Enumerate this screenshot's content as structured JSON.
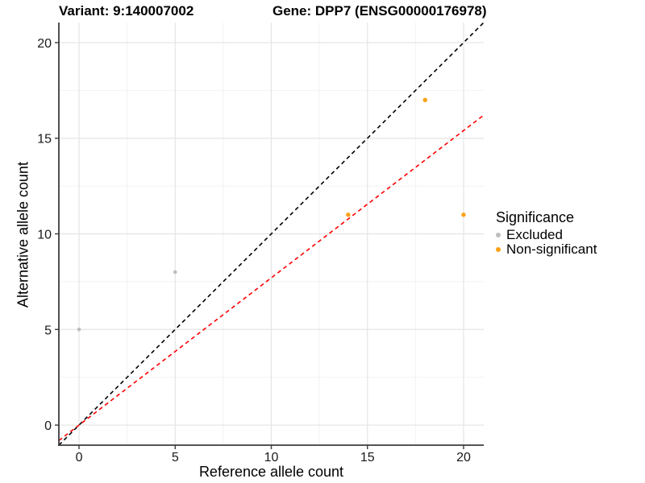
{
  "title": {
    "variant": "Variant: 9:140007002",
    "gene": "Gene: DPP7 (ENSG00000176978)"
  },
  "axes": {
    "x_label": "Reference allele count",
    "y_label": "Alternative allele count"
  },
  "legend": {
    "title": "Significance",
    "items": [
      {
        "label": "Excluded",
        "color": "#BDBDBD"
      },
      {
        "label": "Non-significant",
        "color": "#FCA014"
      }
    ]
  },
  "colors": {
    "background": "#FFFFFF",
    "grid_major": "#E4E4E4",
    "grid_minor": "#F2F2F2",
    "axis_line": "#3C3C3C",
    "tick_label": "#1A1A1A",
    "identity_line": "#000000",
    "fit_line": "#FF0000"
  },
  "chart_data": {
    "type": "scatter",
    "title": "Variant: 9:140007002   Gene: DPP7 (ENSG00000176978)",
    "xlabel": "Reference allele count",
    "ylabel": "Alternative allele count",
    "xlim": [
      -1.05,
      21.05
    ],
    "ylim": [
      -1.05,
      21.05
    ],
    "x_ticks": [
      0,
      5,
      10,
      15,
      20
    ],
    "y_ticks": [
      0,
      5,
      10,
      15,
      20
    ],
    "minor_ticks": [
      2.5,
      7.5,
      12.5,
      17.5
    ],
    "grid": "major+minor",
    "legend_position": "right",
    "series": [
      {
        "name": "Excluded",
        "color": "#BDBDBD",
        "radius": 2.3,
        "points": [
          [
            0,
            5
          ],
          [
            5,
            8
          ]
        ]
      },
      {
        "name": "Non-significant",
        "color": "#FCA014",
        "radius": 2.7,
        "points": [
          [
            14,
            11
          ],
          [
            18,
            17
          ],
          [
            20,
            11
          ]
        ]
      }
    ],
    "lines": [
      {
        "name": "identity-line",
        "slope": 1.0,
        "intercept": 0,
        "color": "#000000",
        "style": "dashed"
      },
      {
        "name": "fit-line",
        "slope": 0.77,
        "intercept": 0,
        "color": "#FF0000",
        "style": "dashed"
      }
    ]
  }
}
